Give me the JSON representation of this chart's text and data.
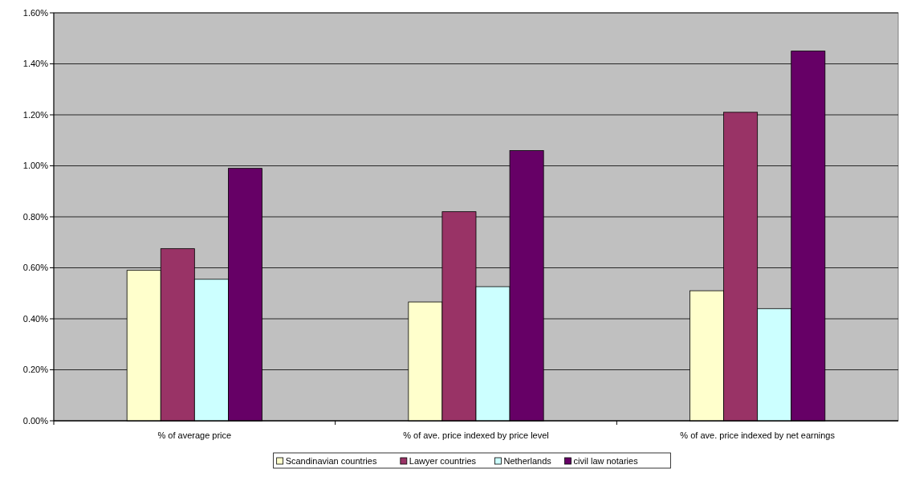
{
  "chart_data": {
    "type": "bar",
    "categories": [
      "% of average price",
      "% of ave. price indexed by price level",
      "% of ave. price indexed by net earnings"
    ],
    "series": [
      {
        "name": "Scandinavian countries",
        "color": "#ffffcc",
        "values": [
          0.59,
          0.466,
          0.51
        ]
      },
      {
        "name": "Lawyer countries",
        "color": "#993366",
        "values": [
          0.675,
          0.82,
          1.21
        ]
      },
      {
        "name": "Netherlands",
        "color": "#ccffff",
        "values": [
          0.555,
          0.526,
          0.44
        ]
      },
      {
        "name": "civil law notaries",
        "color": "#660066",
        "values": [
          0.99,
          1.06,
          1.45
        ]
      }
    ],
    "ylim": [
      0,
      1.6
    ],
    "yticks": [
      {
        "value": 0,
        "label": "0.00%"
      },
      {
        "value": 0.2,
        "label": "0.20%"
      },
      {
        "value": 0.4,
        "label": "0.40%"
      },
      {
        "value": 0.6,
        "label": "0.60%"
      },
      {
        "value": 0.8,
        "label": "0.80%"
      },
      {
        "value": 1,
        "label": "1.00%"
      },
      {
        "value": 1.2,
        "label": "1.20%"
      },
      {
        "value": 1.4,
        "label": "1.40%"
      },
      {
        "value": 1.6,
        "label": "1.60%"
      }
    ],
    "grid": "y",
    "legend": "bottom"
  }
}
